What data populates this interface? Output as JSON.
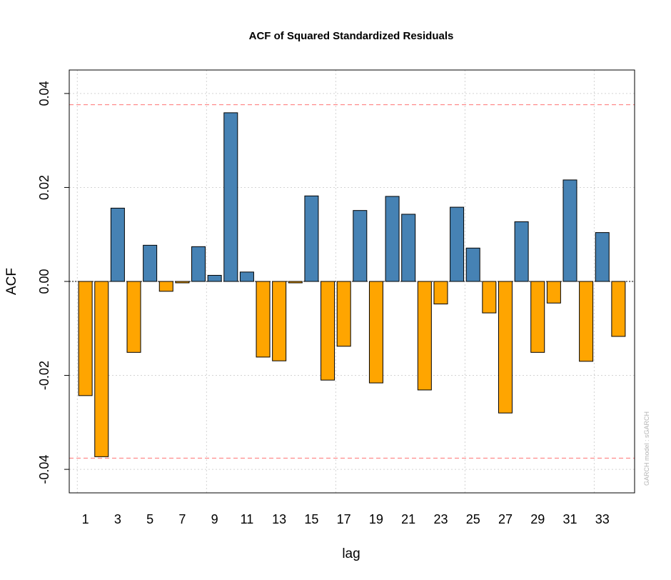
{
  "chart_data": {
    "type": "bar",
    "title": "ACF of Squared Standardized Residuals",
    "xlabel": "lag",
    "ylabel": "ACF",
    "credit": "GARCH model : sGARCH",
    "lags": [
      1,
      2,
      3,
      4,
      5,
      6,
      7,
      8,
      9,
      10,
      11,
      12,
      13,
      14,
      15,
      16,
      17,
      18,
      19,
      20,
      21,
      22,
      23,
      24,
      25,
      26,
      27,
      28,
      29,
      30,
      31,
      32,
      33,
      34
    ],
    "values": [
      -0.0243,
      -0.0373,
      0.0156,
      -0.0151,
      0.0077,
      -0.0021,
      -0.0003,
      0.0074,
      0.0013,
      0.0359,
      0.002,
      -0.0161,
      -0.0169,
      -0.0003,
      0.0182,
      -0.021,
      -0.0138,
      0.0151,
      -0.0216,
      0.0181,
      0.0143,
      -0.0231,
      -0.0048,
      0.0158,
      0.0071,
      -0.0067,
      -0.028,
      0.0127,
      -0.0151,
      -0.0046,
      0.0216,
      -0.017,
      0.0104,
      -0.0117
    ],
    "x_tick_labels": [
      "1",
      "3",
      "5",
      "7",
      "9",
      "11",
      "13",
      "15",
      "17",
      "19",
      "21",
      "23",
      "25",
      "27",
      "29",
      "31",
      "33"
    ],
    "y_ticks": [
      -0.04,
      -0.02,
      0.0,
      0.02,
      0.04
    ],
    "y_tick_labels": [
      "-0.04",
      "-0.02",
      "0.00",
      "0.02",
      "0.04"
    ],
    "ylim": [
      -0.045,
      0.045
    ],
    "confidence_bound": 0.0376,
    "grid": true,
    "colors": {
      "positive": "#4682b4",
      "negative": "#ffa500",
      "bound": "#ff0000",
      "grid": "#d3d3d3",
      "zero_line": "#000000"
    }
  }
}
